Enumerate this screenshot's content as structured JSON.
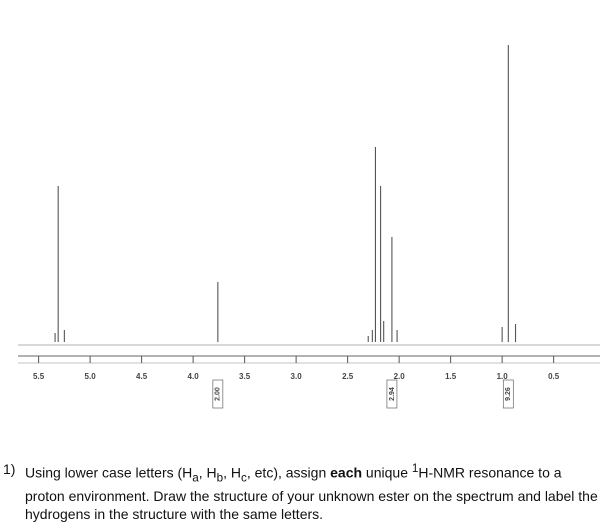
{
  "chart_data": {
    "type": "spectrum",
    "xlim": [
      5.7,
      0.05
    ],
    "ylim": [
      0,
      100
    ],
    "xticks": [
      5.5,
      {
        "value": 5,
        "label": "5.0"
      },
      4.5,
      {
        "value": 4,
        "label": "4.0"
      },
      3.5,
      {
        "value": 3,
        "label": "3.0"
      },
      2.5,
      {
        "value": 2,
        "label": "2.0"
      },
      1.5,
      {
        "value": 1,
        "label": "1.0"
      },
      0.5
    ],
    "color": "#555555",
    "peaks": {
      "x": [
        5.34,
        5.31,
        5.25,
        3.76,
        2.3,
        2.26,
        2.23,
        2.18,
        2.15,
        2.07,
        2.02,
        1.0,
        0.94,
        0.87
      ],
      "values": [
        3,
        52,
        4,
        20,
        2,
        4,
        65,
        52,
        7,
        35,
        4,
        5,
        99,
        6
      ]
    },
    "integrals": [
      {
        "ppm": 3.76,
        "value": 2,
        "label": "2.00"
      },
      {
        "ppm": 2.07,
        "value": 2.94,
        "label": "2.94"
      },
      {
        "ppm": 0.94,
        "value": 9.26,
        "label": "9.26"
      }
    ]
  },
  "question": {
    "number": "1)",
    "parts": [
      "Using lower case letters (H",
      "a",
      ", H",
      "b",
      ", H",
      "c",
      ", etc), assign ",
      "each",
      " unique ",
      "1",
      "H-NMR resonance to a proton environment. Draw the structure of your unknown ester on the spectrum and label the hydrogens in the structure with the same letters."
    ]
  }
}
